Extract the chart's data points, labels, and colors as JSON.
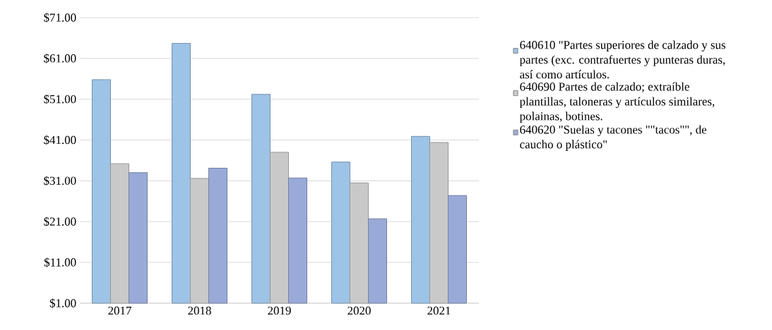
{
  "chart_data": {
    "type": "bar",
    "categories": [
      "2017",
      "2018",
      "2019",
      "2020",
      "2021"
    ],
    "series": [
      {
        "name": "640610 \"Partes superiores de calzado y sus partes (exc. contrafuertes y punteras duras, así como artículos.",
        "color": "#9dc3e6",
        "values": [
          55.8,
          64.7,
          52.2,
          35.6,
          41.9
        ]
      },
      {
        "name": "640690 Partes de calzado; extraíble plantillas, taloneras y artículos similares, polainas, botines.",
        "color": "#c9c9c9",
        "values": [
          35.2,
          31.6,
          38.0,
          30.5,
          40.4
        ]
      },
      {
        "name": "640620 \"Suelas y tacones \"\"tacos\"\", de caucho o plástico\"",
        "color": "#9aaad8",
        "values": [
          33.0,
          34.1,
          31.7,
          21.7,
          27.4
        ]
      }
    ],
    "ylim": [
      1,
      71
    ],
    "yticks": [
      {
        "value": 1,
        "label": "$1.00"
      },
      {
        "value": 11,
        "label": "$11.00"
      },
      {
        "value": 21,
        "label": "$21.00"
      },
      {
        "value": 31,
        "label": "$31.00"
      },
      {
        "value": 41,
        "label": "$41.00"
      },
      {
        "value": 51,
        "label": "$51.00"
      },
      {
        "value": 61,
        "label": "$61.00"
      },
      {
        "value": 71,
        "label": "$71.00"
      }
    ],
    "grid": "y",
    "legend": "right"
  }
}
